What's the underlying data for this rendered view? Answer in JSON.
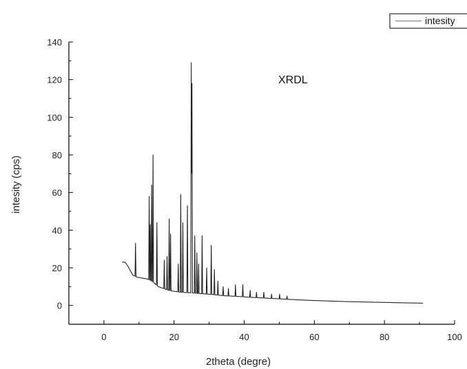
{
  "chart_data": {
    "type": "line",
    "title": "",
    "annotation": "XRDL",
    "xlabel": "2theta (degre)",
    "ylabel": "intesity (cps)",
    "xlim": [
      -10,
      100
    ],
    "ylim": [
      -10,
      140
    ],
    "x_ticks": [
      0,
      20,
      40,
      60,
      80,
      100
    ],
    "y_ticks": [
      0,
      20,
      40,
      60,
      80,
      100,
      120,
      140
    ],
    "legend": {
      "position": "top-right",
      "entries": [
        "intesity"
      ]
    },
    "grid": false,
    "colors": {
      "series": "#222222",
      "axes": "#000000",
      "legend_line": "#888888"
    },
    "series": [
      {
        "name": "intesity",
        "baseline": [
          [
            5.2,
            23
          ],
          [
            6,
            23
          ],
          [
            6.8,
            21
          ],
          [
            7.5,
            18.5
          ],
          [
            8.3,
            16
          ],
          [
            9.5,
            15
          ],
          [
            11,
            14.5
          ],
          [
            12.5,
            14
          ],
          [
            14,
            12.5
          ],
          [
            15.5,
            10
          ],
          [
            17,
            9
          ],
          [
            18.5,
            8
          ],
          [
            20,
            7.5
          ],
          [
            22,
            7
          ],
          [
            25,
            6.7
          ],
          [
            28,
            6.2
          ],
          [
            31,
            5.8
          ],
          [
            34,
            5.2
          ],
          [
            38,
            4.8
          ],
          [
            42,
            4.3
          ],
          [
            46,
            3.9
          ],
          [
            50,
            3.5
          ],
          [
            55,
            3
          ],
          [
            60,
            2.6
          ],
          [
            65,
            2.3
          ],
          [
            70,
            2
          ],
          [
            75,
            1.8
          ],
          [
            80,
            1.6
          ],
          [
            85,
            1.4
          ],
          [
            91,
            1.2
          ]
        ],
        "peaks": [
          {
            "x": 9,
            "y": 33
          },
          {
            "x": 12.9,
            "y": 58
          },
          {
            "x": 13.2,
            "y": 43
          },
          {
            "x": 13.6,
            "y": 64
          },
          {
            "x": 14.0,
            "y": 80
          },
          {
            "x": 15.1,
            "y": 44
          },
          {
            "x": 17.2,
            "y": 24
          },
          {
            "x": 18.0,
            "y": 26
          },
          {
            "x": 18.6,
            "y": 46
          },
          {
            "x": 19.0,
            "y": 38
          },
          {
            "x": 21.2,
            "y": 22
          },
          {
            "x": 21.9,
            "y": 59
          },
          {
            "x": 22.5,
            "y": 44
          },
          {
            "x": 23.8,
            "y": 53
          },
          {
            "x": 24.9,
            "y": 129
          },
          {
            "x": 25.1,
            "y": 118
          },
          {
            "x": 25.9,
            "y": 37
          },
          {
            "x": 26.5,
            "y": 28
          },
          {
            "x": 27.0,
            "y": 22
          },
          {
            "x": 28.0,
            "y": 37
          },
          {
            "x": 29.3,
            "y": 20
          },
          {
            "x": 30.6,
            "y": 32
          },
          {
            "x": 31.5,
            "y": 19
          },
          {
            "x": 32.5,
            "y": 13
          },
          {
            "x": 34.0,
            "y": 10
          },
          {
            "x": 35.5,
            "y": 9
          },
          {
            "x": 37.5,
            "y": 11
          },
          {
            "x": 39.6,
            "y": 11
          },
          {
            "x": 41.7,
            "y": 8
          },
          {
            "x": 43.5,
            "y": 7
          },
          {
            "x": 45.6,
            "y": 7
          },
          {
            "x": 47.8,
            "y": 6
          },
          {
            "x": 50.1,
            "y": 6
          },
          {
            "x": 52.2,
            "y": 5
          }
        ]
      }
    ]
  }
}
